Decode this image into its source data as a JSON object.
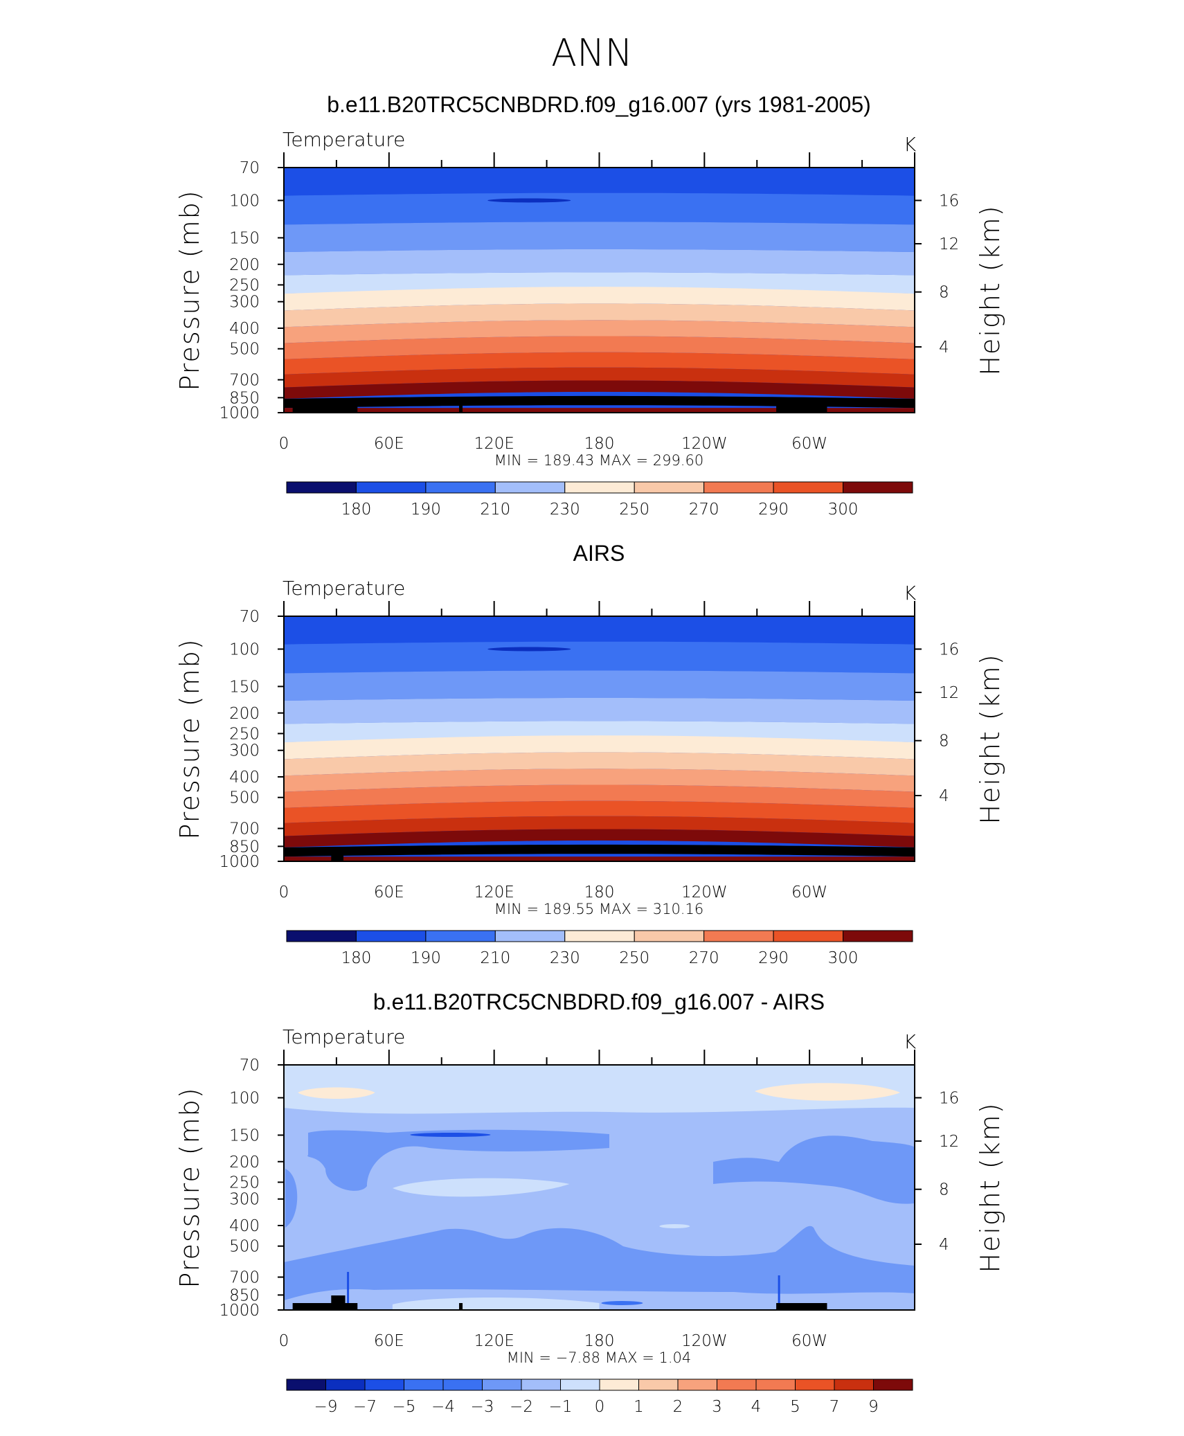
{
  "figure_title": "ANN",
  "colors": {
    "temp_levels": [
      "#0a0f6e",
      "#0b2fbf",
      "#1c4fe6",
      "#3a71f2",
      "#6e98f7",
      "#a3befa",
      "#cde0fc",
      "#fdebd6",
      "#f9c9a9",
      "#f7a27d",
      "#f27a52",
      "#ea5326",
      "#c9300f",
      "#7d0a0a"
    ],
    "diff_levels": [
      "#0a0f6e",
      "#0b2fbf",
      "#1c4fe6",
      "#3a71f2",
      "#6e98f7",
      "#a3befa",
      "#cde0fc",
      "#fdebd6",
      "#f9c9a9",
      "#f7a27d",
      "#f27a52",
      "#ea5326",
      "#c9300f",
      "#7d0a0a"
    ],
    "land": "#000000"
  },
  "chart_data": [
    {
      "type": "heatmap",
      "title": "b.e11.B20TRC5CNBDRD.f09_g16.007 (yrs 1981-2005)",
      "variable_label": "Temperature",
      "units": "K",
      "xlabel": "",
      "ylabel": "Pressure (mb)",
      "ylabel_right": "Height (km)",
      "x_ticklabels": [
        "0",
        "60E",
        "120E",
        "180",
        "120W",
        "60W"
      ],
      "x_tick_lons": [
        0,
        60,
        120,
        180,
        240,
        300
      ],
      "xlim": [
        0,
        360
      ],
      "y_ticklabels": [
        "70",
        "100",
        "150",
        "200",
        "250",
        "300",
        "400",
        "500",
        "700",
        "850",
        "1000"
      ],
      "y_ticks": [
        70,
        100,
        150,
        200,
        250,
        300,
        400,
        500,
        700,
        850,
        1000
      ],
      "ylim": [
        1000,
        70
      ],
      "y_scale": "log",
      "right_ticklabels": [
        "16",
        "12",
        "8",
        "4"
      ],
      "min_label": "MIN  =  189.43   MAX  =  299.60",
      "min": 189.43,
      "max": 299.6,
      "colorbar_labels": [
        "180",
        "190",
        "210",
        "230",
        "250",
        "270",
        "290",
        "300"
      ],
      "level_boundaries_p": [
        95,
        130,
        175,
        225,
        275,
        330,
        395,
        470,
        560,
        660,
        760,
        860,
        950
      ],
      "level_colors": [
        "#1c4fe6",
        "#3a71f2",
        "#6e98f7",
        "#a3befa",
        "#cde0fc",
        "#fdebd6",
        "#f9c9a9",
        "#f7a27d",
        "#f27a52",
        "#ea5326",
        "#c9300f",
        "#7d0a0a"
      ]
    },
    {
      "type": "heatmap",
      "title": "AIRS",
      "variable_label": "Temperature",
      "units": "K",
      "xlabel": "",
      "ylabel": "Pressure (mb)",
      "ylabel_right": "Height (km)",
      "x_ticklabels": [
        "0",
        "60E",
        "120E",
        "180",
        "120W",
        "60W"
      ],
      "x_tick_lons": [
        0,
        60,
        120,
        180,
        240,
        300
      ],
      "xlim": [
        0,
        360
      ],
      "y_ticklabels": [
        "70",
        "100",
        "150",
        "200",
        "250",
        "300",
        "400",
        "500",
        "700",
        "850",
        "1000"
      ],
      "y_ticks": [
        70,
        100,
        150,
        200,
        250,
        300,
        400,
        500,
        700,
        850,
        1000
      ],
      "ylim": [
        1000,
        70
      ],
      "y_scale": "log",
      "right_ticklabels": [
        "16",
        "12",
        "8",
        "4"
      ],
      "min_label": "MIN  =  189.55   MAX  =  310.16",
      "min": 189.55,
      "max": 310.16,
      "colorbar_labels": [
        "180",
        "190",
        "210",
        "230",
        "250",
        "270",
        "290",
        "300"
      ],
      "level_boundaries_p": [
        95,
        130,
        175,
        225,
        275,
        330,
        395,
        470,
        560,
        660,
        760,
        860,
        950
      ],
      "level_colors": [
        "#1c4fe6",
        "#3a71f2",
        "#6e98f7",
        "#a3befa",
        "#cde0fc",
        "#fdebd6",
        "#f9c9a9",
        "#f7a27d",
        "#f27a52",
        "#ea5326",
        "#c9300f",
        "#7d0a0a"
      ]
    },
    {
      "type": "heatmap",
      "title": "b.e11.B20TRC5CNBDRD.f09_g16.007 - AIRS",
      "variable_label": "Temperature",
      "units": "K",
      "xlabel": "",
      "ylabel": "Pressure (mb)",
      "ylabel_right": "Height (km)",
      "x_ticklabels": [
        "0",
        "60E",
        "120E",
        "180",
        "120W",
        "60W"
      ],
      "x_tick_lons": [
        0,
        60,
        120,
        180,
        240,
        300
      ],
      "xlim": [
        0,
        360
      ],
      "y_ticklabels": [
        "70",
        "100",
        "150",
        "200",
        "250",
        "300",
        "400",
        "500",
        "700",
        "850",
        "1000"
      ],
      "y_ticks": [
        70,
        100,
        150,
        200,
        250,
        300,
        400,
        500,
        700,
        850,
        1000
      ],
      "ylim": [
        1000,
        70
      ],
      "y_scale": "log",
      "right_ticklabels": [
        "16",
        "12",
        "8",
        "4"
      ],
      "min_label": "MIN  =    −7.88   MAX  =      1.04",
      "min": -7.88,
      "max": 1.04,
      "colorbar_labels": [
        "−9",
        "−7",
        "−5",
        "−4",
        "−3",
        "−2",
        "−1",
        "0",
        "1",
        "2",
        "3",
        "4",
        "5",
        "7",
        "9"
      ]
    }
  ]
}
